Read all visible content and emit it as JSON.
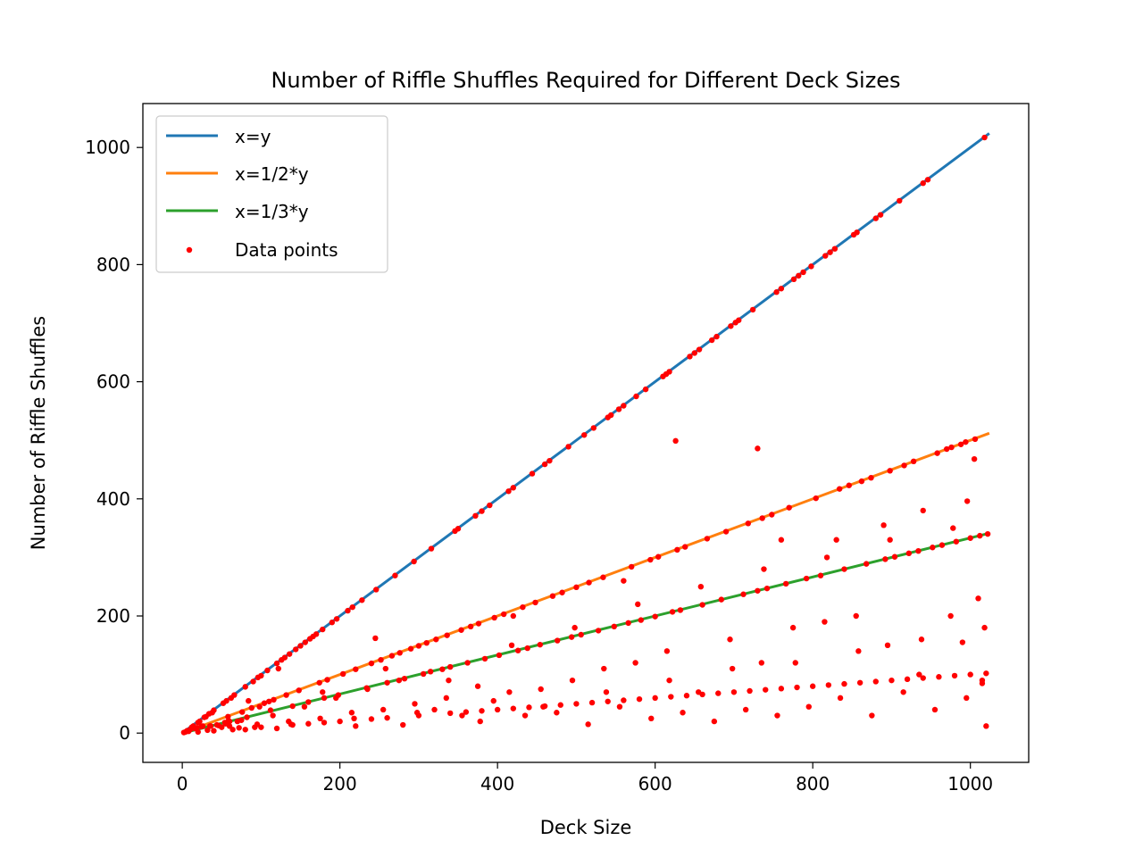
{
  "chart_data": {
    "type": "scatter",
    "title": "Number of Riffle Shuffles Required for Different Deck Sizes",
    "xlabel": "Deck Size",
    "ylabel": "Number of Riffle Shuffles",
    "xlim": [
      -50,
      1074
    ],
    "ylim": [
      -50,
      1075
    ],
    "xticks": [
      0,
      200,
      400,
      600,
      800,
      1000
    ],
    "yticks": [
      0,
      200,
      400,
      600,
      800,
      1000
    ],
    "grid": false,
    "legend_position": "top-left",
    "lines": [
      {
        "name": "x=y",
        "slope": 1,
        "x_range": [
          2,
          1024
        ],
        "color": "#1f77b4"
      },
      {
        "name": "x=1/2*y",
        "slope": 0.5,
        "x_range": [
          2,
          1024
        ],
        "color": "#ff7f0e"
      },
      {
        "name": "x=1/3*y",
        "slope": 0.3333,
        "x_range": [
          2,
          1024
        ],
        "color": "#2ca02c"
      }
    ],
    "scatter": {
      "name": "Data points",
      "color": "#ff0000",
      "points": [
        [
          2,
          1
        ],
        [
          4,
          2
        ],
        [
          6,
          4
        ],
        [
          8,
          3
        ],
        [
          10,
          6
        ],
        [
          12,
          10
        ],
        [
          14,
          12
        ],
        [
          16,
          8
        ],
        [
          18,
          9
        ],
        [
          20,
          18
        ],
        [
          22,
          20
        ],
        [
          24,
          11
        ],
        [
          26,
          12
        ],
        [
          28,
          27
        ],
        [
          30,
          28
        ],
        [
          32,
          5
        ],
        [
          34,
          33
        ],
        [
          36,
          12
        ],
        [
          38,
          35
        ],
        [
          40,
          39
        ],
        [
          44,
          14
        ],
        [
          46,
          13
        ],
        [
          50,
          10
        ],
        [
          52,
          51
        ],
        [
          54,
          18
        ],
        [
          56,
          55
        ],
        [
          58,
          28
        ],
        [
          60,
          20
        ],
        [
          62,
          60
        ],
        [
          64,
          6
        ],
        [
          66,
          65
        ],
        [
          70,
          20
        ],
        [
          72,
          9
        ],
        [
          76,
          36
        ],
        [
          80,
          79
        ],
        [
          82,
          27
        ],
        [
          84,
          55
        ],
        [
          88,
          43
        ],
        [
          90,
          88
        ],
        [
          92,
          10
        ],
        [
          96,
          95
        ],
        [
          100,
          98
        ],
        [
          104,
          51
        ],
        [
          108,
          107
        ],
        [
          110,
          54
        ],
        [
          112,
          39
        ],
        [
          116,
          57
        ],
        [
          120,
          119
        ],
        [
          122,
          110
        ],
        [
          126,
          125
        ],
        [
          130,
          129
        ],
        [
          132,
          65
        ],
        [
          136,
          135
        ],
        [
          140,
          46
        ],
        [
          144,
          143
        ],
        [
          148,
          73
        ],
        [
          150,
          149
        ],
        [
          156,
          155
        ],
        [
          160,
          53
        ],
        [
          162,
          161
        ],
        [
          166,
          165
        ],
        [
          170,
          169
        ],
        [
          174,
          86
        ],
        [
          178,
          177
        ],
        [
          180,
          60
        ],
        [
          184,
          91
        ],
        [
          190,
          189
        ],
        [
          196,
          195
        ],
        [
          198,
          65
        ],
        [
          204,
          101
        ],
        [
          210,
          209
        ],
        [
          216,
          215
        ],
        [
          220,
          109
        ],
        [
          228,
          227
        ],
        [
          234,
          77
        ],
        [
          240,
          119
        ],
        [
          246,
          245
        ],
        [
          252,
          125
        ],
        [
          260,
          86
        ],
        [
          266,
          132
        ],
        [
          270,
          269
        ],
        [
          276,
          137
        ],
        [
          282,
          93
        ],
        [
          290,
          144
        ],
        [
          294,
          293
        ],
        [
          300,
          149
        ],
        [
          306,
          101
        ],
        [
          310,
          154
        ],
        [
          316,
          315
        ],
        [
          322,
          160
        ],
        [
          330,
          109
        ],
        [
          336,
          167
        ],
        [
          340,
          113
        ],
        [
          346,
          345
        ],
        [
          350,
          349
        ],
        [
          354,
          176
        ],
        [
          362,
          120
        ],
        [
          366,
          182
        ],
        [
          372,
          371
        ],
        [
          376,
          187
        ],
        [
          380,
          379
        ],
        [
          384,
          127
        ],
        [
          390,
          389
        ],
        [
          396,
          197
        ],
        [
          402,
          133
        ],
        [
          408,
          203
        ],
        [
          414,
          413
        ],
        [
          420,
          419
        ],
        [
          426,
          141
        ],
        [
          432,
          215
        ],
        [
          438,
          145
        ],
        [
          444,
          443
        ],
        [
          448,
          223
        ],
        [
          454,
          151
        ],
        [
          460,
          459
        ],
        [
          466,
          465
        ],
        [
          470,
          234
        ],
        [
          476,
          158
        ],
        [
          482,
          240
        ],
        [
          490,
          489
        ],
        [
          494,
          164
        ],
        [
          500,
          249
        ],
        [
          506,
          168
        ],
        [
          510,
          509
        ],
        [
          516,
          257
        ],
        [
          522,
          521
        ],
        [
          528,
          175
        ],
        [
          534,
          266
        ],
        [
          540,
          539
        ],
        [
          544,
          543
        ],
        [
          548,
          182
        ],
        [
          554,
          553
        ],
        [
          560,
          559
        ],
        [
          566,
          188
        ],
        [
          570,
          284
        ],
        [
          576,
          575
        ],
        [
          582,
          193
        ],
        [
          588,
          587
        ],
        [
          594,
          296
        ],
        [
          600,
          199
        ],
        [
          604,
          301
        ],
        [
          610,
          609
        ],
        [
          614,
          613
        ],
        [
          618,
          617
        ],
        [
          622,
          207
        ],
        [
          628,
          313
        ],
        [
          632,
          210
        ],
        [
          638,
          318
        ],
        [
          644,
          643
        ],
        [
          650,
          649
        ],
        [
          656,
          655
        ],
        [
          660,
          219
        ],
        [
          666,
          332
        ],
        [
          672,
          671
        ],
        [
          678,
          677
        ],
        [
          684,
          228
        ],
        [
          690,
          344
        ],
        [
          696,
          695
        ],
        [
          702,
          701
        ],
        [
          706,
          705
        ],
        [
          712,
          237
        ],
        [
          718,
          358
        ],
        [
          724,
          723
        ],
        [
          730,
          243
        ],
        [
          736,
          367
        ],
        [
          742,
          247
        ],
        [
          748,
          373
        ],
        [
          754,
          753
        ],
        [
          760,
          759
        ],
        [
          766,
          255
        ],
        [
          770,
          385
        ],
        [
          776,
          775
        ],
        [
          782,
          781
        ],
        [
          788,
          787
        ],
        [
          792,
          264
        ],
        [
          798,
          797
        ],
        [
          804,
          401
        ],
        [
          810,
          269
        ],
        [
          816,
          815
        ],
        [
          822,
          821
        ],
        [
          828,
          827
        ],
        [
          834,
          417
        ],
        [
          840,
          280
        ],
        [
          846,
          423
        ],
        [
          852,
          851
        ],
        [
          856,
          855
        ],
        [
          862,
          430
        ],
        [
          868,
          289
        ],
        [
          874,
          436
        ],
        [
          880,
          879
        ],
        [
          886,
          885
        ],
        [
          892,
          297
        ],
        [
          898,
          448
        ],
        [
          904,
          301
        ],
        [
          910,
          909
        ],
        [
          916,
          457
        ],
        [
          922,
          307
        ],
        [
          928,
          464
        ],
        [
          934,
          311
        ],
        [
          940,
          939
        ],
        [
          946,
          945
        ],
        [
          952,
          317
        ],
        [
          958,
          478
        ],
        [
          964,
          321
        ],
        [
          970,
          485
        ],
        [
          976,
          488
        ],
        [
          982,
          327
        ],
        [
          988,
          493
        ],
        [
          994,
          497
        ],
        [
          1000,
          333
        ],
        [
          1006,
          502
        ],
        [
          1012,
          337
        ],
        [
          1018,
          1017
        ],
        [
          1022,
          340
        ],
        [
          20,
          2
        ],
        [
          40,
          4
        ],
        [
          60,
          12
        ],
        [
          80,
          6
        ],
        [
          100,
          10
        ],
        [
          120,
          8
        ],
        [
          140,
          14
        ],
        [
          160,
          16
        ],
        [
          180,
          18
        ],
        [
          200,
          20
        ],
        [
          220,
          12
        ],
        [
          240,
          24
        ],
        [
          260,
          26
        ],
        [
          280,
          14
        ],
        [
          300,
          30
        ],
        [
          320,
          40
        ],
        [
          340,
          34
        ],
        [
          360,
          36
        ],
        [
          380,
          38
        ],
        [
          400,
          40
        ],
        [
          420,
          42
        ],
        [
          440,
          44
        ],
        [
          460,
          46
        ],
        [
          480,
          48
        ],
        [
          500,
          50
        ],
        [
          520,
          52
        ],
        [
          540,
          54
        ],
        [
          560,
          56
        ],
        [
          580,
          58
        ],
        [
          600,
          60
        ],
        [
          620,
          62
        ],
        [
          640,
          64
        ],
        [
          660,
          66
        ],
        [
          680,
          68
        ],
        [
          700,
          70
        ],
        [
          720,
          72
        ],
        [
          740,
          74
        ],
        [
          760,
          76
        ],
        [
          780,
          78
        ],
        [
          800,
          80
        ],
        [
          820,
          82
        ],
        [
          840,
          84
        ],
        [
          860,
          86
        ],
        [
          880,
          88
        ],
        [
          900,
          90
        ],
        [
          920,
          92
        ],
        [
          940,
          94
        ],
        [
          960,
          96
        ],
        [
          980,
          98
        ],
        [
          1000,
          100
        ],
        [
          1020,
          102
        ],
        [
          35,
          12
        ],
        [
          55,
          16
        ],
        [
          75,
          22
        ],
        [
          95,
          15
        ],
        [
          115,
          30
        ],
        [
          135,
          20
        ],
        [
          155,
          45
        ],
        [
          175,
          25
        ],
        [
          195,
          60
        ],
        [
          215,
          35
        ],
        [
          235,
          75
        ],
        [
          255,
          40
        ],
        [
          275,
          90
        ],
        [
          295,
          50
        ],
        [
          315,
          105
        ],
        [
          335,
          60
        ],
        [
          355,
          30
        ],
        [
          375,
          80
        ],
        [
          395,
          55
        ],
        [
          415,
          70
        ],
        [
          435,
          30
        ],
        [
          455,
          75
        ],
        [
          475,
          35
        ],
        [
          495,
          90
        ],
        [
          515,
          15
        ],
        [
          535,
          110
        ],
        [
          555,
          45
        ],
        [
          575,
          120
        ],
        [
          595,
          25
        ],
        [
          615,
          140
        ],
        [
          635,
          35
        ],
        [
          655,
          70
        ],
        [
          675,
          20
        ],
        [
          695,
          160
        ],
        [
          715,
          40
        ],
        [
          735,
          120
        ],
        [
          755,
          30
        ],
        [
          775,
          180
        ],
        [
          795,
          45
        ],
        [
          815,
          190
        ],
        [
          835,
          60
        ],
        [
          855,
          200
        ],
        [
          875,
          30
        ],
        [
          895,
          150
        ],
        [
          915,
          70
        ],
        [
          935,
          100
        ],
        [
          955,
          40
        ],
        [
          975,
          200
        ],
        [
          995,
          60
        ],
        [
          1015,
          90
        ],
        [
          58,
          20
        ],
        [
          98,
          45
        ],
        [
          138,
          15
        ],
        [
          178,
          70
        ],
        [
          218,
          25
        ],
        [
          258,
          110
        ],
        [
          298,
          35
        ],
        [
          338,
          90
        ],
        [
          378,
          20
        ],
        [
          418,
          150
        ],
        [
          458,
          45
        ],
        [
          498,
          180
        ],
        [
          538,
          70
        ],
        [
          578,
          220
        ],
        [
          618,
          90
        ],
        [
          658,
          250
        ],
        [
          698,
          110
        ],
        [
          738,
          280
        ],
        [
          778,
          120
        ],
        [
          818,
          300
        ],
        [
          858,
          140
        ],
        [
          898,
          330
        ],
        [
          938,
          160
        ],
        [
          978,
          350
        ],
        [
          1018,
          180
        ],
        [
          245,
          162
        ],
        [
          626,
          499
        ],
        [
          730,
          486
        ],
        [
          420,
          200
        ],
        [
          560,
          260
        ],
        [
          760,
          330
        ],
        [
          830,
          330
        ],
        [
          890,
          355
        ],
        [
          940,
          380
        ],
        [
          1005,
          468
        ],
        [
          996,
          396
        ],
        [
          1015,
          85
        ],
        [
          1020,
          12
        ],
        [
          1010,
          230
        ],
        [
          990,
          155
        ]
      ]
    }
  }
}
